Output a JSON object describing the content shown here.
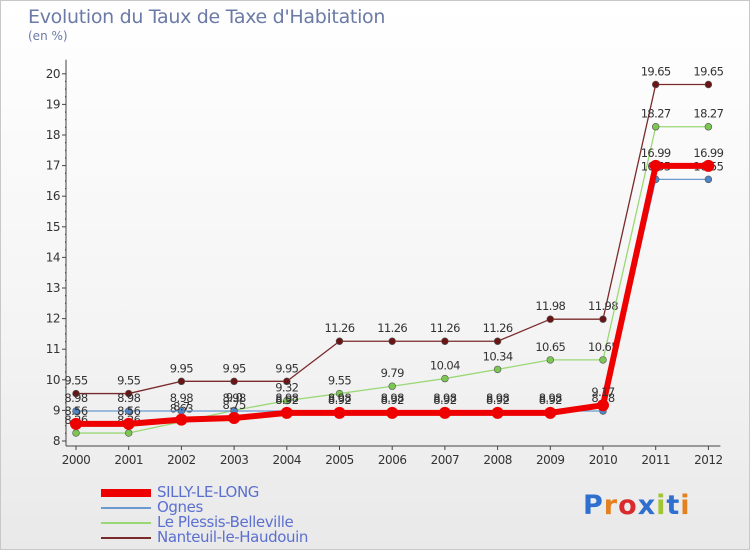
{
  "header": {
    "title": "Evolution du Taux de Taxe d'Habitation",
    "subtitle": "(en %)"
  },
  "brand": {
    "text": "Proxiti"
  },
  "chart_data": {
    "type": "line",
    "title": "Evolution du Taux de Taxe d'Habitation",
    "ylabel": "(en %)",
    "xlabel": "",
    "ylim": [
      8,
      20
    ],
    "yticks": [
      8,
      9,
      10,
      11,
      12,
      13,
      14,
      15,
      16,
      17,
      18,
      19,
      20
    ],
    "grid": false,
    "legend_position": "bottom-left",
    "categories": [
      "2000",
      "2001",
      "2002",
      "2003",
      "2004",
      "2005",
      "2006",
      "2007",
      "2008",
      "2009",
      "2010",
      "2011",
      "2012"
    ],
    "series": [
      {
        "name": "Nanteuil-le-Haudouin",
        "color": "#7a2a2a",
        "marker": "#6a1515",
        "width": 1.3,
        "values": [
          9.55,
          9.55,
          9.95,
          9.95,
          9.95,
          11.26,
          11.26,
          11.26,
          11.26,
          11.98,
          11.98,
          19.65,
          19.65
        ],
        "labels": [
          "9.55",
          "9.55",
          "9.95",
          "9.95",
          "9.95",
          "11.26",
          "11.26",
          "11.26",
          "11.26",
          "11.98",
          "11.98",
          "19.65",
          "19.65"
        ]
      },
      {
        "name": "Le Plessis-Belleville",
        "color": "#9ad876",
        "marker": "#7cc652",
        "width": 1.3,
        "values": [
          8.26,
          8.26,
          8.63,
          9.0,
          9.32,
          9.55,
          9.79,
          10.04,
          10.34,
          10.65,
          10.65,
          18.27,
          18.27
        ],
        "labels": [
          "8.26",
          "8.26",
          "8.63",
          "9.0",
          "9.32",
          "9.55",
          "9.79",
          "10.04",
          "10.34",
          "10.65",
          "10.65",
          "18.27",
          "18.27"
        ]
      },
      {
        "name": "Ognes",
        "color": "#6a9ad0",
        "marker": "#4e86c8",
        "width": 1.3,
        "values": [
          8.98,
          8.98,
          8.98,
          8.98,
          8.98,
          8.98,
          8.98,
          8.98,
          8.98,
          8.98,
          8.98,
          16.55,
          16.55
        ],
        "labels": [
          "8.98",
          "8.98",
          "8.98",
          "8.98",
          "8.98",
          "8.98",
          "8.98",
          "8.98",
          "8.98",
          "8.98",
          "8.98",
          "16.55",
          "16.55"
        ]
      },
      {
        "name": "SILLY-LE-LONG",
        "color": "#ee0000",
        "marker": "#ee0000",
        "width": 6,
        "values": [
          8.56,
          8.56,
          8.7,
          8.75,
          8.92,
          8.92,
          8.92,
          8.92,
          8.92,
          8.92,
          9.17,
          16.99,
          16.99
        ],
        "labels": [
          "8.56",
          "8.56",
          "8.7",
          "8.75",
          "8.92",
          "8.92",
          "8.92",
          "8.92",
          "8.92",
          "8.92",
          "9.17",
          "16.99",
          "16.99"
        ]
      }
    ]
  },
  "legend": {
    "items": [
      {
        "label": "SILLY-LE-LONG",
        "color": "#ee0000",
        "height": 8
      },
      {
        "label": "Ognes",
        "color": "#6a9ad0",
        "height": 2
      },
      {
        "label": "Le Plessis-Belleville",
        "color": "#9ad876",
        "height": 2
      },
      {
        "label": "Nanteuil-le-Haudouin",
        "color": "#7a2a2a",
        "height": 2
      }
    ]
  }
}
